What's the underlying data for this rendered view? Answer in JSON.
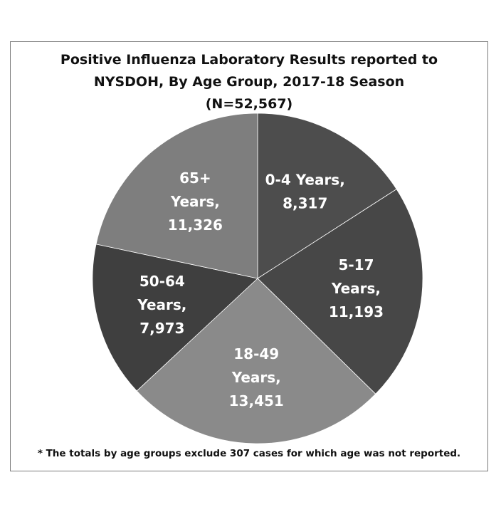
{
  "chart_data": {
    "type": "pie",
    "title_lines": [
      "Positive Influenza Laboratory Results reported to",
      "NYSDOH, By Age Group, 2017-18 Season",
      "(N=52,567)"
    ],
    "slices": [
      {
        "label_lines": [
          "0-4 Years,",
          "8,317"
        ],
        "value": 8317,
        "color": "#4d4d4d"
      },
      {
        "label_lines": [
          "5-17",
          "Years,",
          "11,193"
        ],
        "value": 11193,
        "color": "#474747"
      },
      {
        "label_lines": [
          "18-49",
          "Years,",
          "13,451"
        ],
        "value": 13451,
        "color": "#8a8a8a"
      },
      {
        "label_lines": [
          "50-64",
          "Years,",
          "7,973"
        ],
        "value": 7973,
        "color": "#3f3f3f"
      },
      {
        "label_lines": [
          "65+",
          "Years,",
          "11,326"
        ],
        "value": 11326,
        "color": "#7e7e7e"
      }
    ],
    "footnote": "* The totals by age groups exclude 307 cases for which age was not reported.",
    "start_angle": "12 o'clock",
    "direction": "clockwise"
  }
}
